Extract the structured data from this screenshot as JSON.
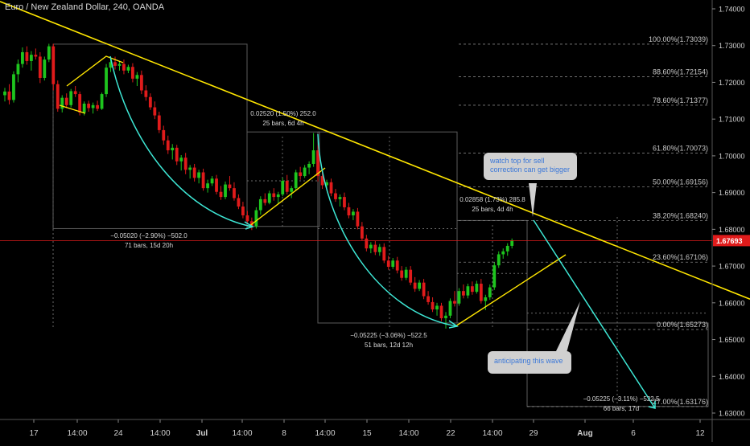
{
  "chart_title": "Euro / New Zealand Dollar, 240, OANDA",
  "colors": {
    "background": "#000000",
    "up_candle": "#1ec51e",
    "down_candle": "#e01b1b",
    "trendline": "#ffe600",
    "swing_curve": "#3ee8d6",
    "projection": "#3ee8d6",
    "current_price_line": "#e01b1b",
    "fib_lines": "#808080",
    "axis_text": "#d0d0d0",
    "callout_bg": "#d0d0d0",
    "callout_text": "#3c78d8"
  },
  "chart_data": {
    "type": "candlestick",
    "symbol": "EURNZD",
    "timeframe": "240",
    "source": "OANDA",
    "ylim": [
      1.625,
      1.745
    ],
    "y_ticks": [
      "1.74000",
      "1.73000",
      "1.72000",
      "1.71000",
      "1.70000",
      "1.69000",
      "1.68000",
      "1.67000",
      "1.66000",
      "1.65000",
      "1.64000",
      "1.63000"
    ],
    "x_ticks": [
      "17",
      "14:00",
      "24",
      "14:00",
      "Jul",
      "14:00",
      "8",
      "14:00",
      "15",
      "14:00",
      "22",
      "14:00",
      "29",
      "Aug",
      "6",
      "12"
    ],
    "current_price": "1.67693",
    "candles": [
      {
        "o": 1.7165,
        "h": 1.7185,
        "l": 1.7148,
        "c": 1.7175
      },
      {
        "o": 1.7175,
        "h": 1.7195,
        "l": 1.714,
        "c": 1.7152
      },
      {
        "o": 1.7152,
        "h": 1.723,
        "l": 1.7145,
        "c": 1.7222
      },
      {
        "o": 1.7222,
        "h": 1.7262,
        "l": 1.72,
        "c": 1.725
      },
      {
        "o": 1.725,
        "h": 1.7295,
        "l": 1.724,
        "c": 1.7282
      },
      {
        "o": 1.7282,
        "h": 1.7298,
        "l": 1.7248,
        "c": 1.7258
      },
      {
        "o": 1.7258,
        "h": 1.7285,
        "l": 1.7232,
        "c": 1.7275
      },
      {
        "o": 1.7275,
        "h": 1.7292,
        "l": 1.7262,
        "c": 1.727
      },
      {
        "o": 1.727,
        "h": 1.7282,
        "l": 1.7198,
        "c": 1.7212
      },
      {
        "o": 1.7212,
        "h": 1.727,
        "l": 1.7205,
        "c": 1.7262
      },
      {
        "o": 1.7262,
        "h": 1.7305,
        "l": 1.7255,
        "c": 1.7298
      },
      {
        "o": 1.7298,
        "h": 1.7305,
        "l": 1.7178,
        "c": 1.7195
      },
      {
        "o": 1.7195,
        "h": 1.7205,
        "l": 1.712,
        "c": 1.7128
      },
      {
        "o": 1.7128,
        "h": 1.7165,
        "l": 1.7118,
        "c": 1.7158
      },
      {
        "o": 1.7158,
        "h": 1.717,
        "l": 1.713,
        "c": 1.7138
      },
      {
        "o": 1.7138,
        "h": 1.7182,
        "l": 1.7132,
        "c": 1.7176
      },
      {
        "o": 1.7176,
        "h": 1.719,
        "l": 1.716,
        "c": 1.7168
      },
      {
        "o": 1.7168,
        "h": 1.7175,
        "l": 1.711,
        "c": 1.7118
      },
      {
        "o": 1.7118,
        "h": 1.7148,
        "l": 1.711,
        "c": 1.7142
      },
      {
        "o": 1.7142,
        "h": 1.715,
        "l": 1.712,
        "c": 1.713
      },
      {
        "o": 1.713,
        "h": 1.7145,
        "l": 1.7115,
        "c": 1.7138
      },
      {
        "o": 1.7138,
        "h": 1.715,
        "l": 1.7122,
        "c": 1.7128
      },
      {
        "o": 1.7128,
        "h": 1.7172,
        "l": 1.7125,
        "c": 1.7168
      },
      {
        "o": 1.7168,
        "h": 1.725,
        "l": 1.716,
        "c": 1.724
      },
      {
        "o": 1.724,
        "h": 1.7265,
        "l": 1.7228,
        "c": 1.7255
      },
      {
        "o": 1.7255,
        "h": 1.727,
        "l": 1.7235,
        "c": 1.7245
      },
      {
        "o": 1.7245,
        "h": 1.7258,
        "l": 1.7232,
        "c": 1.725
      },
      {
        "o": 1.725,
        "h": 1.7262,
        "l": 1.7222,
        "c": 1.7232
      },
      {
        "o": 1.7232,
        "h": 1.7248,
        "l": 1.7225,
        "c": 1.7242
      },
      {
        "o": 1.7242,
        "h": 1.7252,
        "l": 1.72,
        "c": 1.721
      },
      {
        "o": 1.721,
        "h": 1.7228,
        "l": 1.719,
        "c": 1.722
      },
      {
        "o": 1.722,
        "h": 1.7232,
        "l": 1.7168,
        "c": 1.7178
      },
      {
        "o": 1.7178,
        "h": 1.7192,
        "l": 1.715,
        "c": 1.716
      },
      {
        "o": 1.716,
        "h": 1.717,
        "l": 1.7125,
        "c": 1.7132
      },
      {
        "o": 1.7132,
        "h": 1.7148,
        "l": 1.71,
        "c": 1.711
      },
      {
        "o": 1.711,
        "h": 1.712,
        "l": 1.7062,
        "c": 1.707
      },
      {
        "o": 1.707,
        "h": 1.7082,
        "l": 1.703,
        "c": 1.7042
      },
      {
        "o": 1.7042,
        "h": 1.7055,
        "l": 1.7005,
        "c": 1.7015
      },
      {
        "o": 1.7015,
        "h": 1.7032,
        "l": 1.699,
        "c": 1.7022
      },
      {
        "o": 1.7022,
        "h": 1.703,
        "l": 1.6975,
        "c": 1.6985
      },
      {
        "o": 1.6985,
        "h": 1.7002,
        "l": 1.696,
        "c": 1.6995
      },
      {
        "o": 1.6995,
        "h": 1.7008,
        "l": 1.695,
        "c": 1.6962
      },
      {
        "o": 1.6962,
        "h": 1.6975,
        "l": 1.6938,
        "c": 1.6968
      },
      {
        "o": 1.6968,
        "h": 1.6978,
        "l": 1.693,
        "c": 1.694
      },
      {
        "o": 1.694,
        "h": 1.6962,
        "l": 1.6925,
        "c": 1.6955
      },
      {
        "o": 1.6955,
        "h": 1.6965,
        "l": 1.6905,
        "c": 1.6912
      },
      {
        "o": 1.6912,
        "h": 1.6935,
        "l": 1.69,
        "c": 1.6925
      },
      {
        "o": 1.6925,
        "h": 1.6945,
        "l": 1.6918,
        "c": 1.6938
      },
      {
        "o": 1.6938,
        "h": 1.6948,
        "l": 1.6895,
        "c": 1.6902
      },
      {
        "o": 1.6902,
        "h": 1.6918,
        "l": 1.688,
        "c": 1.6888
      },
      {
        "o": 1.6888,
        "h": 1.693,
        "l": 1.6882,
        "c": 1.6922
      },
      {
        "o": 1.6922,
        "h": 1.6945,
        "l": 1.6905,
        "c": 1.6912
      },
      {
        "o": 1.6912,
        "h": 1.6928,
        "l": 1.6878,
        "c": 1.6885
      },
      {
        "o": 1.6885,
        "h": 1.6895,
        "l": 1.6855,
        "c": 1.6862
      },
      {
        "o": 1.6862,
        "h": 1.6875,
        "l": 1.683,
        "c": 1.6838
      },
      {
        "o": 1.6838,
        "h": 1.685,
        "l": 1.6815,
        "c": 1.6822
      },
      {
        "o": 1.6822,
        "h": 1.6832,
        "l": 1.6798,
        "c": 1.6808
      },
      {
        "o": 1.6808,
        "h": 1.686,
        "l": 1.6802,
        "c": 1.6852
      },
      {
        "o": 1.6852,
        "h": 1.689,
        "l": 1.684,
        "c": 1.6882
      },
      {
        "o": 1.6882,
        "h": 1.6898,
        "l": 1.6865,
        "c": 1.6872
      },
      {
        "o": 1.6872,
        "h": 1.6905,
        "l": 1.6868,
        "c": 1.6898
      },
      {
        "o": 1.6898,
        "h": 1.6912,
        "l": 1.6878,
        "c": 1.6888
      },
      {
        "o": 1.6888,
        "h": 1.6902,
        "l": 1.687,
        "c": 1.6895
      },
      {
        "o": 1.6895,
        "h": 1.694,
        "l": 1.689,
        "c": 1.6932
      },
      {
        "o": 1.6932,
        "h": 1.6948,
        "l": 1.6895,
        "c": 1.6902
      },
      {
        "o": 1.6902,
        "h": 1.6918,
        "l": 1.6885,
        "c": 1.6912
      },
      {
        "o": 1.6912,
        "h": 1.6962,
        "l": 1.6905,
        "c": 1.6955
      },
      {
        "o": 1.6955,
        "h": 1.697,
        "l": 1.6935,
        "c": 1.6945
      },
      {
        "o": 1.6945,
        "h": 1.6975,
        "l": 1.694,
        "c": 1.6968
      },
      {
        "o": 1.6968,
        "h": 1.6985,
        "l": 1.695,
        "c": 1.6978
      },
      {
        "o": 1.6978,
        "h": 1.7062,
        "l": 1.697,
        "c": 1.7015
      },
      {
        "o": 1.7015,
        "h": 1.7028,
        "l": 1.693,
        "c": 1.6945
      },
      {
        "o": 1.6945,
        "h": 1.6958,
        "l": 1.691,
        "c": 1.692
      },
      {
        "o": 1.692,
        "h": 1.6935,
        "l": 1.6905,
        "c": 1.6928
      },
      {
        "o": 1.6928,
        "h": 1.6938,
        "l": 1.689,
        "c": 1.6898
      },
      {
        "o": 1.6898,
        "h": 1.691,
        "l": 1.6875,
        "c": 1.6882
      },
      {
        "o": 1.6882,
        "h": 1.6895,
        "l": 1.6862,
        "c": 1.6888
      },
      {
        "o": 1.6888,
        "h": 1.69,
        "l": 1.6852,
        "c": 1.686
      },
      {
        "o": 1.686,
        "h": 1.6872,
        "l": 1.683,
        "c": 1.6838
      },
      {
        "o": 1.6838,
        "h": 1.6855,
        "l": 1.6825,
        "c": 1.6848
      },
      {
        "o": 1.6848,
        "h": 1.6858,
        "l": 1.68,
        "c": 1.6808
      },
      {
        "o": 1.6808,
        "h": 1.682,
        "l": 1.677,
        "c": 1.6775
      },
      {
        "o": 1.6775,
        "h": 1.6785,
        "l": 1.674,
        "c": 1.6748
      },
      {
        "o": 1.6748,
        "h": 1.6765,
        "l": 1.6735,
        "c": 1.6758
      },
      {
        "o": 1.6758,
        "h": 1.6768,
        "l": 1.673,
        "c": 1.6738
      },
      {
        "o": 1.6738,
        "h": 1.676,
        "l": 1.6728,
        "c": 1.6752
      },
      {
        "o": 1.6752,
        "h": 1.6762,
        "l": 1.6708,
        "c": 1.6715
      },
      {
        "o": 1.6715,
        "h": 1.6728,
        "l": 1.669,
        "c": 1.6698
      },
      {
        "o": 1.6698,
        "h": 1.6722,
        "l": 1.6692,
        "c": 1.6715
      },
      {
        "o": 1.6715,
        "h": 1.6725,
        "l": 1.668,
        "c": 1.6688
      },
      {
        "o": 1.6688,
        "h": 1.67,
        "l": 1.666,
        "c": 1.6668
      },
      {
        "o": 1.6668,
        "h": 1.6698,
        "l": 1.6662,
        "c": 1.669
      },
      {
        "o": 1.669,
        "h": 1.67,
        "l": 1.6648,
        "c": 1.6655
      },
      {
        "o": 1.6655,
        "h": 1.667,
        "l": 1.663,
        "c": 1.6638
      },
      {
        "o": 1.6638,
        "h": 1.6662,
        "l": 1.6632,
        "c": 1.6655
      },
      {
        "o": 1.6655,
        "h": 1.6665,
        "l": 1.661,
        "c": 1.6618
      },
      {
        "o": 1.6618,
        "h": 1.6632,
        "l": 1.6595,
        "c": 1.6602
      },
      {
        "o": 1.6602,
        "h": 1.6615,
        "l": 1.6575,
        "c": 1.6582
      },
      {
        "o": 1.6582,
        "h": 1.66,
        "l": 1.6565,
        "c": 1.6592
      },
      {
        "o": 1.6592,
        "h": 1.66,
        "l": 1.655,
        "c": 1.6558
      },
      {
        "o": 1.6558,
        "h": 1.6575,
        "l": 1.653,
        "c": 1.6565
      },
      {
        "o": 1.6565,
        "h": 1.6612,
        "l": 1.6558,
        "c": 1.6605
      },
      {
        "o": 1.6605,
        "h": 1.6632,
        "l": 1.659,
        "c": 1.6598
      },
      {
        "o": 1.6598,
        "h": 1.664,
        "l": 1.6592,
        "c": 1.6632
      },
      {
        "o": 1.6632,
        "h": 1.665,
        "l": 1.6612,
        "c": 1.662
      },
      {
        "o": 1.662,
        "h": 1.6652,
        "l": 1.6612,
        "c": 1.6645
      },
      {
        "o": 1.6645,
        "h": 1.6658,
        "l": 1.6622,
        "c": 1.663
      },
      {
        "o": 1.663,
        "h": 1.666,
        "l": 1.6625,
        "c": 1.6652
      },
      {
        "o": 1.6652,
        "h": 1.6665,
        "l": 1.6598,
        "c": 1.6605
      },
      {
        "o": 1.6605,
        "h": 1.6622,
        "l": 1.658,
        "c": 1.6615
      },
      {
        "o": 1.6615,
        "h": 1.665,
        "l": 1.6608,
        "c": 1.6642
      },
      {
        "o": 1.6642,
        "h": 1.671,
        "l": 1.6635,
        "c": 1.6702
      },
      {
        "o": 1.6702,
        "h": 1.674,
        "l": 1.6695,
        "c": 1.6732
      },
      {
        "o": 1.6732,
        "h": 1.6748,
        "l": 1.672,
        "c": 1.674
      },
      {
        "o": 1.674,
        "h": 1.6762,
        "l": 1.6728,
        "c": 1.6755
      },
      {
        "o": 1.6755,
        "h": 1.6775,
        "l": 1.6748,
        "c": 1.6769
      }
    ],
    "fibonacci": [
      {
        "label": "100.00%(1.73039)",
        "price": 1.73039
      },
      {
        "label": "88.60%(1.72154)",
        "price": 1.72154
      },
      {
        "label": "78.60%(1.71377)",
        "price": 1.71377
      },
      {
        "label": "61.80%(1.70073)",
        "price": 1.70073
      },
      {
        "label": "50.00%(1.69156)",
        "price": 1.69156
      },
      {
        "label": "38.20%(1.68240)",
        "price": 1.6824
      },
      {
        "label": "23.60%(1.67106)",
        "price": 1.67106
      },
      {
        "label": "0.00%(1.65273)",
        "price": 1.65273
      },
      {
        "label": "-27.00%(1.63176)",
        "price": 1.63176
      }
    ],
    "annotations": {
      "measure1": [
        "−0.05020 (−2.90%) −502.0",
        "71 bars, 15d 20h"
      ],
      "measure2": [
        "0.02520 (1.50%) 252.0",
        "25 bars, 6d 4h"
      ],
      "measure3": [
        "−0.05225 (−3.06%) −522.5",
        "51 bars, 12d 12h"
      ],
      "measure4": [
        "0.02858 (1.73%) 285.8",
        "25 bars, 4d 4h"
      ],
      "measure5": [
        "−0.05225 (−3.11%) −522.5",
        "66 bars, 17d"
      ]
    }
  },
  "callouts": {
    "top": [
      "watch top for sell",
      "correction can get bigger"
    ],
    "bottom": [
      "anticipating this wave"
    ]
  }
}
